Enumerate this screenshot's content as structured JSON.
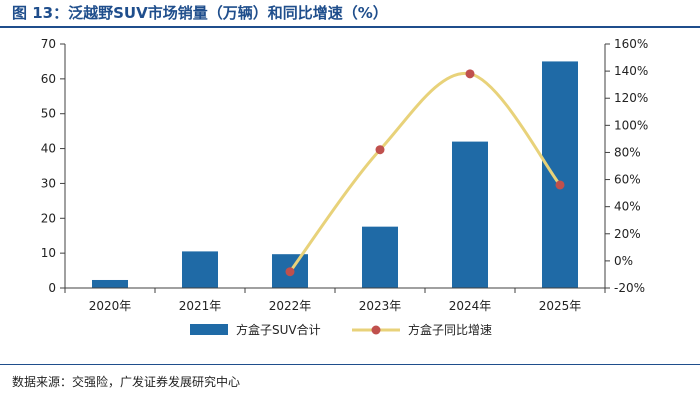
{
  "page": {
    "title": "图 13：泛越野SUV市场销量（万辆）和同比增速（%）",
    "source": "数据来源：交强险，广发证券发展研究中心"
  },
  "colors": {
    "bar": "#1f6aa6",
    "line": "#e8d27a",
    "marker": "#c0504d",
    "axis": "#404040",
    "title": "#1f4e8c"
  },
  "chart_data": {
    "type": "bar+line",
    "categories": [
      "2020年",
      "2021年",
      "2022年",
      "2023年",
      "2024年",
      "2025年"
    ],
    "series": [
      {
        "name": "方盒子SUV合计",
        "type": "bar",
        "axis": "left",
        "values": [
          2.3,
          10.5,
          9.7,
          17.6,
          42.0,
          65.0
        ]
      },
      {
        "name": "方盒子同比增速",
        "type": "line",
        "axis": "right",
        "values": [
          null,
          null,
          -0.08,
          0.82,
          1.38,
          0.56
        ]
      }
    ],
    "y_left": {
      "min": 0,
      "max": 70,
      "step": 10,
      "ticks": [
        "0",
        "10",
        "20",
        "30",
        "40",
        "50",
        "60",
        "70"
      ]
    },
    "y_right": {
      "min": -0.2,
      "max": 1.6,
      "step": 0.2,
      "ticks": [
        "-20%",
        "0%",
        "20%",
        "40%",
        "60%",
        "80%",
        "100%",
        "120%",
        "140%",
        "160%"
      ]
    },
    "legend_position": "bottom-center",
    "grid": false
  }
}
